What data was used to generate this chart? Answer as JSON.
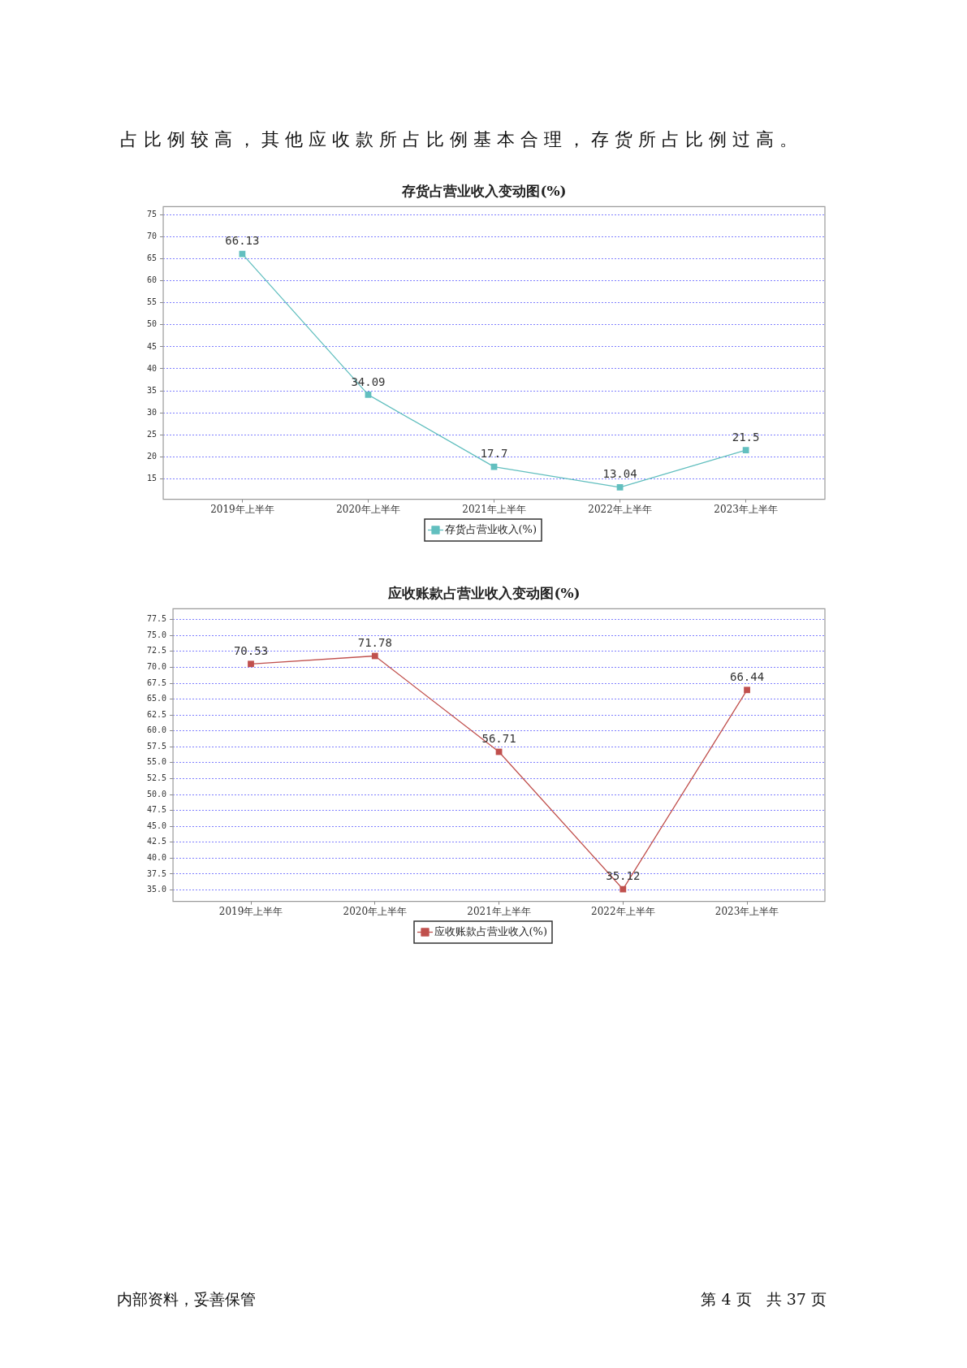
{
  "chart_data": [
    {
      "type": "line",
      "title": "存货占营业收入变动图(%)",
      "annotations": [
        "占比例较高，其他应收款所占比例基本合理，存货所占比例过高。"
      ],
      "categories": [
        "2019年上半年",
        "2020年上半年",
        "2021年上半年",
        "2022年上半年",
        "2023年上半年"
      ],
      "series": [
        {
          "name": "存货占营业收入(%)",
          "color": "#62bfbf",
          "values": [
            66.13,
            34.09,
            17.7,
            13.04,
            21.5
          ]
        }
      ],
      "ylim": [
        10.3,
        76.9
      ],
      "yticks": [
        15,
        20,
        25,
        30,
        35,
        40,
        45,
        50,
        55,
        60,
        65,
        70,
        75
      ],
      "grid": "y",
      "legend": "bottom",
      "marker": "square",
      "line_style": "solid",
      "data_labels": true
    },
    {
      "type": "line",
      "title": "应收账款占营业收入变动图(%)",
      "annotations": [
        "内部资料，妥善保管",
        "第 4 页   共 37 页"
      ],
      "categories": [
        "2019年上半年",
        "2020年上半年",
        "2021年上半年",
        "2022年上半年",
        "2023年上半年"
      ],
      "series": [
        {
          "name": "应收账款占营业收入(%)",
          "color": "#c0504d",
          "values": [
            70.53,
            71.78,
            56.71,
            35.12,
            66.44
          ]
        }
      ],
      "ylim": [
        33.2,
        79.2
      ],
      "yticks": [
        {
          "value": 35,
          "label": "35.0"
        },
        {
          "value": 37.5,
          "label": "37.5"
        },
        {
          "value": 40,
          "label": "40.0"
        },
        {
          "value": 42.5,
          "label": "42.5"
        },
        {
          "value": 45,
          "label": "45.0"
        },
        {
          "value": 47.5,
          "label": "47.5"
        },
        {
          "value": 50,
          "label": "50.0"
        },
        {
          "value": 52.5,
          "label": "52.5"
        },
        {
          "value": 55,
          "label": "55.0"
        },
        {
          "value": 57.5,
          "label": "57.5"
        },
        {
          "value": 60,
          "label": "60.0"
        },
        {
          "value": 62.5,
          "label": "62.5"
        },
        {
          "value": 65,
          "label": "65.0"
        },
        {
          "value": 67.5,
          "label": "67.5"
        },
        {
          "value": 70,
          "label": "70.0"
        },
        {
          "value": 72.5,
          "label": "72.5"
        },
        {
          "value": 75,
          "label": "75.0"
        },
        {
          "value": 77.5,
          "label": "77.5"
        }
      ],
      "grid": "y",
      "legend": "bottom",
      "marker": "square",
      "line_style": "solid",
      "data_labels": true
    }
  ]
}
